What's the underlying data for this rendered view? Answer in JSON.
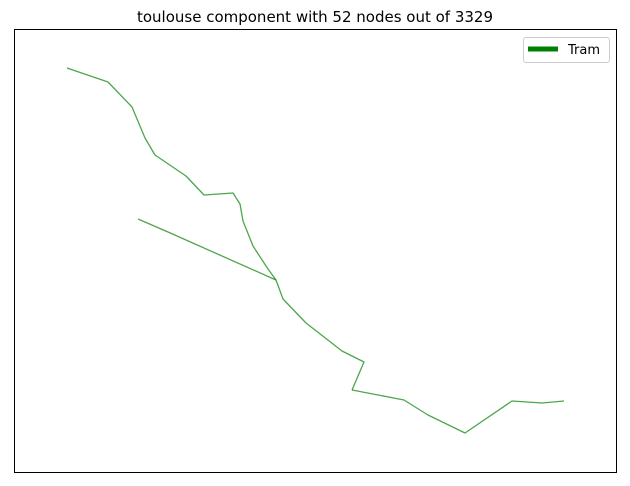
{
  "chart_data": {
    "type": "line",
    "title": "toulouse component with 52 nodes out of 3329",
    "xlabel": "",
    "ylabel": "",
    "axes_ticks": false,
    "grid": false,
    "legend": {
      "placement": "top-right",
      "entries": [
        {
          "label": "Tram",
          "color": "#008000"
        }
      ]
    },
    "series": [
      {
        "name": "Tram",
        "color": "#008000",
        "segments": [
          {
            "x": [
              67,
              108,
              132,
              145,
              155,
              186,
              204,
              233,
              240,
              243,
              253,
              268,
              276
            ],
            "y": [
              -68,
              -82,
              -107,
              -138,
              -155,
              -176,
              -195,
              -193,
              -204,
              -221,
              -246,
              -269,
              -280
            ]
          },
          {
            "x": [
              138,
              168,
              276
            ],
            "y": [
              -219,
              -232,
              -280
            ]
          },
          {
            "x": [
              276,
              283,
              306,
              342,
              364,
              352
            ],
            "y": [
              -280,
              -299,
              -323,
              -351,
              -362,
              -390
            ]
          },
          {
            "x": [
              352,
              404,
              428,
              465,
              512,
              542,
              564
            ],
            "y": [
              -390,
              -400,
              -415,
              -433,
              -401,
              -403,
              -401
            ]
          }
        ]
      }
    ]
  }
}
